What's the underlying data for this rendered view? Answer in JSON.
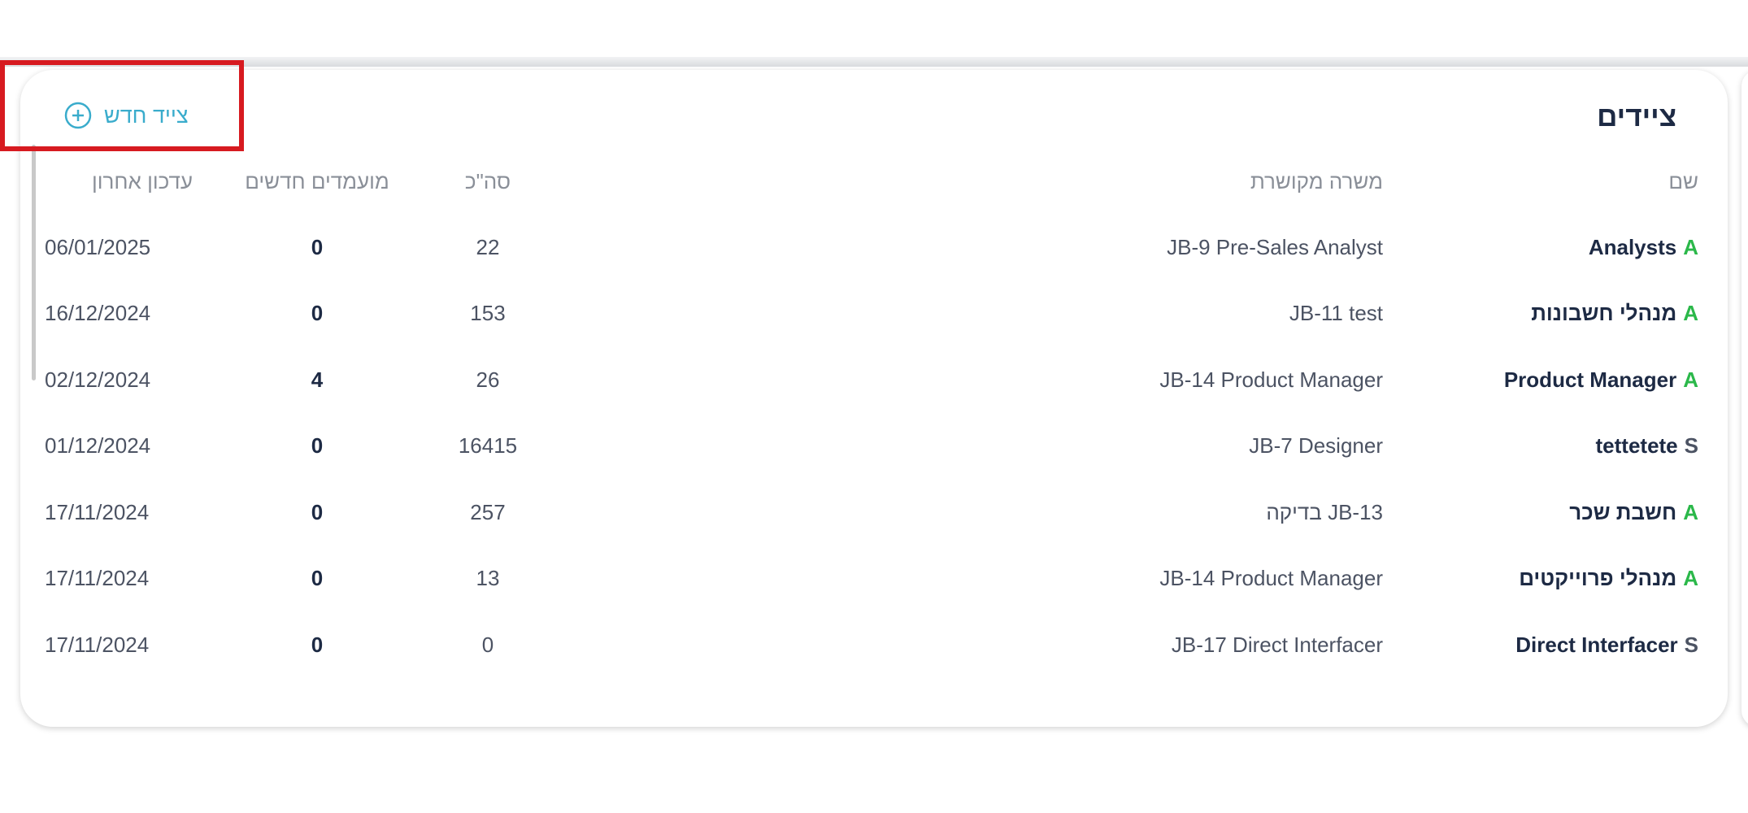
{
  "card": {
    "title": "ציידים",
    "add_button_label": "צייד חדש",
    "add_icon": "plus-circle-icon",
    "columns": {
      "name": "שם",
      "job": "משרה מקושרת",
      "total": "סה\"כ",
      "new": "מועמדים חדשים",
      "date": "עדכון אחרון"
    },
    "rows": [
      {
        "marker": "A",
        "marker_color": "#2bb84a",
        "name": "Analysts",
        "job": "JB-9 Pre-Sales Analyst",
        "total": "22",
        "new": "0",
        "date": "06/01/2025"
      },
      {
        "marker": "A",
        "marker_color": "#2bb84a",
        "name": "מנהלי חשבונות",
        "job": "JB-11 test",
        "total": "153",
        "new": "0",
        "date": "16/12/2024"
      },
      {
        "marker": "A",
        "marker_color": "#2bb84a",
        "name": "Product Manager",
        "job": "JB-14 Product Manager",
        "total": "26",
        "new": "4",
        "date": "02/12/2024"
      },
      {
        "marker": "S",
        "marker_color": "#4c5363",
        "name": "tettetete",
        "job": "JB-7 Designer",
        "total": "16415",
        "new": "0",
        "date": "01/12/2024"
      },
      {
        "marker": "A",
        "marker_color": "#2bb84a",
        "name": "חשבת שכר",
        "job": "JB-13 בדיקה",
        "total": "257",
        "new": "0",
        "date": "17/11/2024"
      },
      {
        "marker": "A",
        "marker_color": "#2bb84a",
        "name": "מנהלי פרוייקטים",
        "job": "JB-14 Product Manager",
        "total": "13",
        "new": "0",
        "date": "17/11/2024"
      },
      {
        "marker": "S",
        "marker_color": "#4c5363",
        "name": "Direct Interfacer",
        "job": "JB-17 Direct Interfacer",
        "total": "0",
        "new": "0",
        "date": "17/11/2024"
      }
    ]
  },
  "colors": {
    "accent": "#3aaccc",
    "highlight_box": "#d71a20",
    "title": "#1d2a44"
  }
}
